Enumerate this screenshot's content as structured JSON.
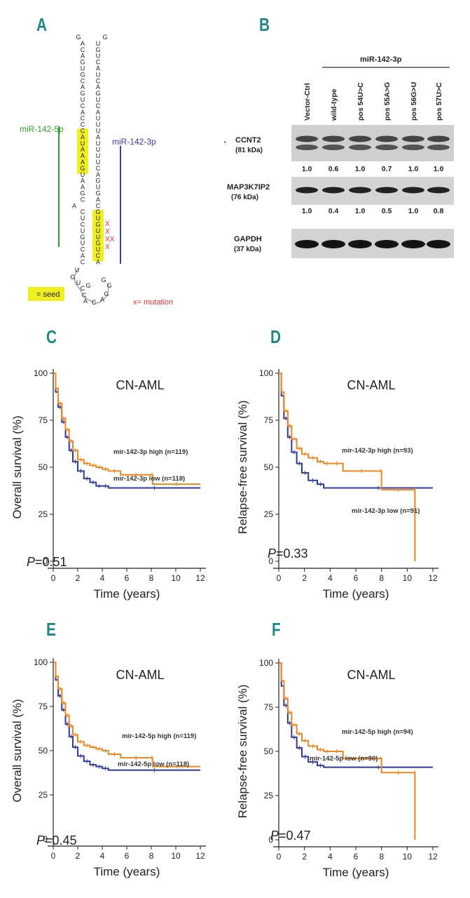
{
  "panel_letters": [
    "A",
    "B",
    "C",
    "D",
    "E",
    "F"
  ],
  "colors": {
    "letter": "#1f8a85",
    "green": "#2ea02e",
    "blue": "#3a3aa8",
    "seed": "#f0f020",
    "mutation": "#e8322c",
    "orange": "#f0861e",
    "curve_blue": "#2f3aa0"
  },
  "panelA": {
    "label_5p": "miR-142-5p",
    "label_3p": "miR-142-3p",
    "seed_legend": "= seed",
    "mutation_legend": "x= mutation",
    "mutation_marks": [
      "X",
      "X",
      "XX",
      "X"
    ],
    "left_strand": [
      "G",
      "A",
      "C",
      "A",
      "G",
      "U",
      "G",
      "C",
      "A",
      "G",
      "U",
      "C",
      "A",
      "C",
      "C",
      "C",
      "A",
      "U",
      "A",
      "A",
      "A",
      "G",
      "U",
      "A",
      "A",
      "G",
      "C",
      "A",
      "C",
      "U",
      "C",
      "U",
      "G",
      "U",
      "C",
      "A",
      "C"
    ],
    "right_strand": [
      "G",
      "U",
      "G",
      "U",
      "C",
      "A",
      "U",
      "C",
      "A",
      "G",
      "U",
      "C",
      "A",
      "U",
      "U",
      "U",
      "A",
      "U",
      "U",
      "U",
      "U",
      "C",
      "A",
      "G",
      "U",
      "G",
      "A",
      "C",
      "G",
      "U",
      "G",
      "U",
      "U",
      "G",
      "U",
      "C",
      "A"
    ],
    "loop_bottom": [
      "U",
      "G",
      "U",
      "C",
      "G",
      "C",
      "A",
      "C",
      "A",
      "G",
      "G",
      "G"
    ]
  },
  "panelB": {
    "header": "miR-142-3p",
    "lanes": [
      "Vector-Ctrl",
      "wild-type",
      "pos 54U>C",
      "pos 55A>G",
      "pos 56G>U",
      "pos 57U>C"
    ],
    "proteins": [
      {
        "name": "CCNT2",
        "kda": "(81 kDa)",
        "values": [
          "1.0",
          "0.6",
          "1.0",
          "0.7",
          "1.0",
          "1.0"
        ]
      },
      {
        "name": "MAP3K7IP2",
        "kda": "(76 kDa)",
        "values": [
          "1.0",
          "0.4",
          "1.0",
          "0.5",
          "1.0",
          "0.8"
        ]
      },
      {
        "name": "GAPDH",
        "kda": "(37 kDa)",
        "values": []
      }
    ]
  },
  "chart_data": [
    {
      "panel": "C",
      "type": "line",
      "title": "CN-AML",
      "xlabel": "Time (years)",
      "ylabel": "Overall survival (%)",
      "xlim": [
        0,
        12
      ],
      "ylim": [
        0,
        100
      ],
      "xticks": [
        "0",
        "2",
        "4",
        "6",
        "8",
        "10",
        "12"
      ],
      "yticks": [
        "0",
        "25",
        "50",
        "75",
        "100"
      ],
      "p_prefix": "P",
      "p_value": "=0.51",
      "series": [
        {
          "name": "mir-142-3p high (n=119)",
          "color": "#f0861e",
          "x": [
            0,
            0.2,
            0.4,
            0.7,
            1.0,
            1.3,
            1.6,
            2.0,
            2.5,
            3.0,
            3.5,
            4.0,
            4.5,
            5.5,
            8.0,
            8.1,
            12
          ],
          "y": [
            100,
            92,
            84,
            76,
            70,
            64,
            59,
            54,
            52,
            51,
            50,
            49,
            48,
            46,
            46,
            41,
            41
          ]
        },
        {
          "name": "mir-142-3p low (n=118)",
          "color": "#2f3aa0",
          "x": [
            0,
            0.2,
            0.4,
            0.7,
            1.0,
            1.3,
            1.6,
            2.0,
            2.5,
            3.0,
            3.5,
            4.0,
            4.5,
            12
          ],
          "y": [
            100,
            90,
            82,
            74,
            66,
            59,
            53,
            48,
            44,
            42,
            40,
            40,
            39,
            39
          ]
        }
      ]
    },
    {
      "panel": "D",
      "type": "line",
      "title": "CN-AML",
      "xlabel": "Time (years)",
      "ylabel": "Relapse-free survival (%)",
      "xlim": [
        0,
        12
      ],
      "ylim": [
        0,
        100
      ],
      "xticks": [
        "0",
        "2",
        "4",
        "6",
        "8",
        "10",
        "12"
      ],
      "yticks": [
        "0",
        "25",
        "50",
        "75",
        "100"
      ],
      "p_prefix": "P",
      "p_value": "=0.33",
      "series": [
        {
          "name": "mir-142-3p high (n=93)",
          "color": "#f0861e",
          "x": [
            0,
            0.2,
            0.4,
            0.7,
            1.0,
            1.4,
            1.8,
            2.3,
            3.0,
            3.5,
            4.0,
            5.0,
            7.9,
            8.0,
            10.6,
            10.6
          ],
          "y": [
            100,
            90,
            80,
            72,
            65,
            60,
            57,
            55,
            53,
            52,
            52,
            48,
            48,
            38,
            38,
            0
          ]
        },
        {
          "name": "mir-142-3p low (n=91)",
          "color": "#2f3aa0",
          "x": [
            0,
            0.2,
            0.4,
            0.7,
            1.0,
            1.4,
            1.8,
            2.3,
            3.0,
            3.5,
            12
          ],
          "y": [
            100,
            88,
            76,
            66,
            58,
            52,
            47,
            43,
            41,
            39,
            39
          ]
        }
      ]
    },
    {
      "panel": "E",
      "type": "line",
      "title": "CN-AML",
      "xlabel": "Time (years)",
      "ylabel": "Overall survival (%)",
      "xlim": [
        0,
        12
      ],
      "ylim": [
        0,
        100
      ],
      "xticks": [
        "0",
        "2",
        "4",
        "6",
        "8",
        "10",
        "12"
      ],
      "yticks": [
        "0",
        "25",
        "50",
        "75",
        "100"
      ],
      "p_prefix": "P",
      "p_value": "=0.45",
      "series": [
        {
          "name": "mir-142-5p high (n=119)",
          "color": "#f0861e",
          "x": [
            0,
            0.2,
            0.4,
            0.7,
            1.0,
            1.3,
            1.6,
            2.0,
            2.5,
            3.0,
            3.5,
            4.0,
            4.5,
            5.5,
            8.0,
            8.1,
            12
          ],
          "y": [
            100,
            92,
            85,
            77,
            70,
            64,
            59,
            55,
            53,
            52,
            51,
            50,
            48,
            46,
            46,
            41,
            41
          ]
        },
        {
          "name": "mir-142-5p low (n=118)",
          "color": "#2f3aa0",
          "x": [
            0,
            0.2,
            0.4,
            0.7,
            1.0,
            1.3,
            1.6,
            2.0,
            2.5,
            3.0,
            3.5,
            4.0,
            4.5,
            12
          ],
          "y": [
            100,
            90,
            81,
            73,
            65,
            58,
            52,
            47,
            44,
            42,
            41,
            40,
            39,
            39
          ]
        }
      ]
    },
    {
      "panel": "F",
      "type": "line",
      "title": "CN-AML",
      "xlabel": "Time (years)",
      "ylabel": "Relapse-free survival (%)",
      "xlim": [
        0,
        12
      ],
      "ylim": [
        0,
        100
      ],
      "xticks": [
        "0",
        "2",
        "4",
        "6",
        "8",
        "10",
        "12"
      ],
      "yticks": [
        "0",
        "25",
        "50",
        "75",
        "100"
      ],
      "p_prefix": "P",
      "p_value": "=0.47",
      "series": [
        {
          "name": "mir-142-5p high (n=94)",
          "color": "#f0861e",
          "x": [
            0,
            0.2,
            0.4,
            0.7,
            1.0,
            1.4,
            1.8,
            2.3,
            3.0,
            3.5,
            4.0,
            5.0,
            7.9,
            8.0,
            10.6,
            10.6
          ],
          "y": [
            100,
            90,
            80,
            72,
            65,
            60,
            56,
            53,
            51,
            50,
            50,
            46,
            46,
            38,
            38,
            0
          ]
        },
        {
          "name": "mir-142-5p low (n=90)",
          "color": "#2f3aa0",
          "x": [
            0,
            0.2,
            0.4,
            0.7,
            1.0,
            1.4,
            1.8,
            2.3,
            3.0,
            3.5,
            12
          ],
          "y": [
            100,
            87,
            76,
            66,
            58,
            52,
            47,
            44,
            42,
            41,
            41
          ]
        }
      ]
    }
  ]
}
